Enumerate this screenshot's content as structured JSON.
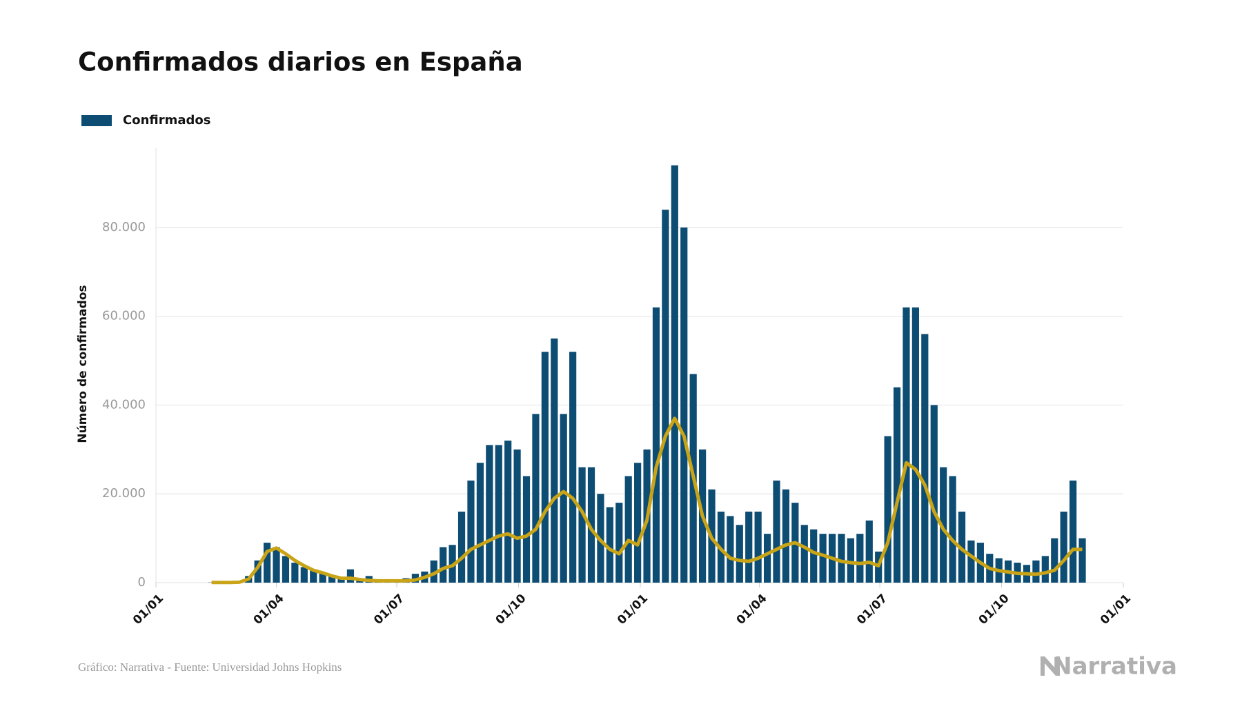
{
  "chart_data": {
    "type": "bar",
    "title": "Confirmados diarios en España",
    "y_label": "Número de confirmados",
    "x": [
      42,
      49,
      56,
      63,
      70,
      77,
      84,
      91,
      98,
      105,
      112,
      119,
      126,
      133,
      140,
      147,
      154,
      161,
      168,
      175,
      182,
      189,
      196,
      203,
      210,
      217,
      224,
      231,
      238,
      245,
      252,
      259,
      266,
      273,
      280,
      287,
      294,
      301,
      308,
      315,
      322,
      329,
      336,
      343,
      350,
      357,
      364,
      371,
      378,
      385,
      392,
      399,
      406,
      413,
      420,
      427,
      434,
      441,
      448,
      455,
      462,
      469,
      476,
      483,
      490,
      497,
      504,
      511,
      518,
      525,
      532,
      539,
      546,
      553,
      560,
      567,
      574,
      581,
      588,
      595,
      602,
      609,
      616,
      623,
      630,
      637,
      644,
      651,
      658,
      665,
      672,
      679,
      686,
      693,
      700
    ],
    "series": [
      {
        "name": "Confirmados",
        "color": "#0e4d73",
        "values": [
          50,
          50,
          60,
          200,
          1500,
          5000,
          9000,
          8000,
          6000,
          4500,
          3500,
          3000,
          2000,
          1500,
          1200,
          3000,
          1000,
          1500,
          600,
          500,
          600,
          1000,
          2000,
          2500,
          5000,
          8000,
          8500,
          16000,
          23000,
          27000,
          31000,
          31000,
          32000,
          30000,
          24000,
          38000,
          52000,
          55000,
          38000,
          52000,
          26000,
          26000,
          20000,
          17000,
          18000,
          24000,
          27000,
          30000,
          62000,
          84000,
          94000,
          80000,
          47000,
          30000,
          21000,
          16000,
          15000,
          13000,
          16000,
          16000,
          11000,
          23000,
          21000,
          18000,
          13000,
          12000,
          11000,
          11000,
          11000,
          10000,
          11000,
          14000,
          7000,
          33000,
          44000,
          62000,
          62000,
          56000,
          40000,
          26000,
          24000,
          16000,
          9500,
          9000,
          6500,
          5500,
          5000,
          4500,
          4000,
          5000,
          6000,
          10000,
          16000,
          23000,
          10000
        ]
      },
      {
        "type": "line",
        "color": "#c9a417",
        "values": [
          30,
          30,
          40,
          100,
          800,
          3500,
          7000,
          7800,
          6500,
          5000,
          3800,
          2800,
          2200,
          1500,
          1000,
          1000,
          700,
          500,
          400,
          400,
          400,
          400,
          600,
          1200,
          2000,
          3200,
          3800,
          5500,
          7500,
          8500,
          9500,
          10500,
          11000,
          10000,
          10500,
          12000,
          16000,
          19000,
          20500,
          19000,
          16000,
          12000,
          9500,
          7500,
          6500,
          9500,
          8500,
          14000,
          26000,
          33000,
          37000,
          33000,
          24000,
          15000,
          10000,
          7500,
          5500,
          5000,
          4800,
          5500,
          6500,
          7500,
          8500,
          9000,
          8000,
          6800,
          6200,
          5500,
          4800,
          4500,
          4300,
          4600,
          3800,
          9000,
          18000,
          27000,
          25500,
          22000,
          16000,
          12000,
          9500,
          7500,
          6000,
          4500,
          3200,
          2700,
          2400,
          2100,
          2000,
          1900,
          2200,
          2800,
          5000,
          7500,
          7500
        ]
      }
    ],
    "xlim": [
      0,
      731
    ],
    "xticks": [
      {
        "value": 0,
        "label": "01/01"
      },
      {
        "value": 91,
        "label": "01/04"
      },
      {
        "value": 182,
        "label": "01/07"
      },
      {
        "value": 274,
        "label": "01/10"
      },
      {
        "value": 366,
        "label": "01/01"
      },
      {
        "value": 456,
        "label": "01/04"
      },
      {
        "value": 547,
        "label": "01/07"
      },
      {
        "value": 639,
        "label": "01/10"
      },
      {
        "value": 731,
        "label": "01/01"
      }
    ],
    "ylim": [
      0,
      98000
    ],
    "yticks": [
      0,
      {
        "value": 20000,
        "label": "20.000"
      },
      {
        "value": 40000,
        "label": "40.000"
      },
      {
        "value": 60000,
        "label": "60.000"
      },
      {
        "value": 80000,
        "label": "80.000"
      }
    ],
    "grid": true,
    "legend": "top-left",
    "source": "Gráfico: Narrativa - Fuente: Universidad Johns Hopkins",
    "logo": "Narrativa"
  }
}
